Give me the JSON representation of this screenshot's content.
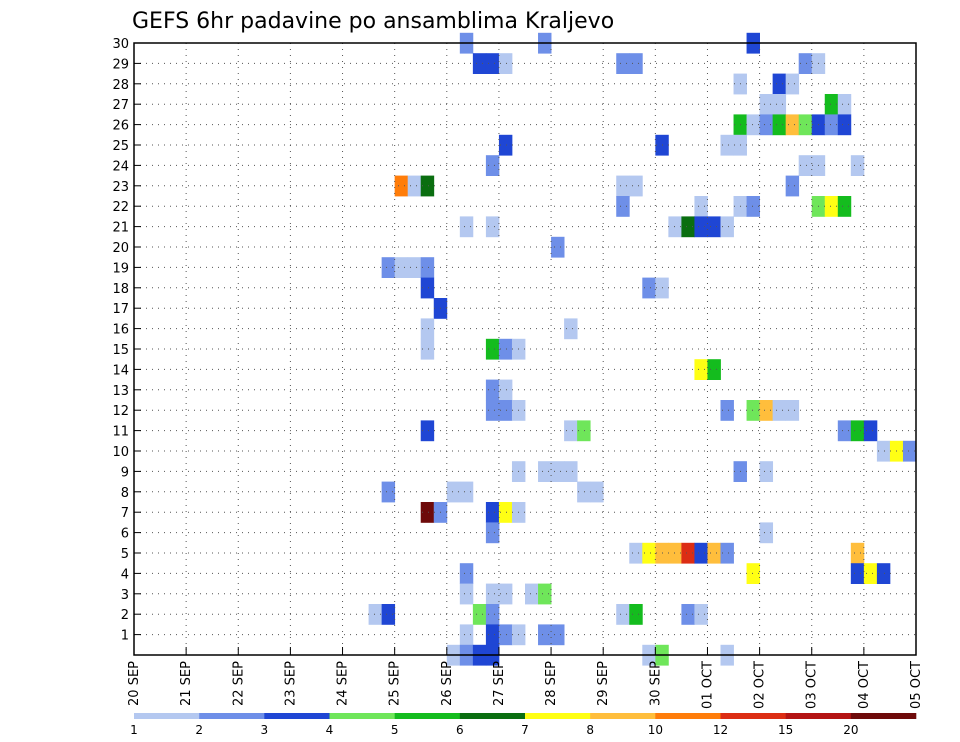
{
  "chart_data": {
    "type": "heatmap",
    "title": "GEFS 6hr padavine po ansamblima Kraljevo",
    "x_tick_labels": [
      "20 SEP",
      "21 SEP",
      "22 SEP",
      "23 SEP",
      "24 SEP",
      "25 SEP",
      "26 SEP",
      "27 SEP",
      "28 SEP",
      "29 SEP",
      "30 SEP",
      "01 OCT",
      "02 OCT",
      "03 OCT",
      "04 OCT",
      "05 OCT"
    ],
    "y_tick_labels": [
      "1",
      "2",
      "3",
      "4",
      "5",
      "6",
      "7",
      "8",
      "9",
      "10",
      "11",
      "12",
      "13",
      "14",
      "15",
      "16",
      "17",
      "18",
      "19",
      "20",
      "21",
      "22",
      "23",
      "24",
      "25",
      "26",
      "27",
      "28",
      "29",
      "30"
    ],
    "x_range_days": [
      0,
      15
    ],
    "y_range": [
      0,
      30
    ],
    "grid": "dotted",
    "colorbar": {
      "labels": [
        "1",
        "2",
        "3",
        "4",
        "5",
        "6",
        "7",
        "8",
        "10",
        "12",
        "15",
        "20"
      ],
      "colors": [
        "#b4c8f0",
        "#6e8fe8",
        "#1f46d4",
        "#6fe65a",
        "#14bc1e",
        "#0a6e10",
        "#ffff14",
        "#ffbe3c",
        "#ff7d0a",
        "#dc2d14",
        "#b41414",
        "#6e0a0a"
      ]
    },
    "cells": [
      {
        "d": 6.25,
        "m": 30,
        "c": 2
      },
      {
        "d": 7.75,
        "m": 30,
        "c": 2
      },
      {
        "d": 11.75,
        "m": 30,
        "c": 3
      },
      {
        "d": 6.5,
        "m": 29,
        "c": 3
      },
      {
        "d": 6.75,
        "m": 29,
        "c": 3
      },
      {
        "d": 7.0,
        "m": 29,
        "c": 1
      },
      {
        "d": 9.25,
        "m": 29,
        "c": 2
      },
      {
        "d": 9.5,
        "m": 29,
        "c": 2
      },
      {
        "d": 12.75,
        "m": 29,
        "c": 2
      },
      {
        "d": 13.0,
        "m": 29,
        "c": 1
      },
      {
        "d": 11.5,
        "m": 28,
        "c": 1
      },
      {
        "d": 12.25,
        "m": 28,
        "c": 3
      },
      {
        "d": 12.5,
        "m": 28,
        "c": 1
      },
      {
        "d": 12.0,
        "m": 27,
        "c": 1
      },
      {
        "d": 12.25,
        "m": 27,
        "c": 1
      },
      {
        "d": 13.25,
        "m": 27,
        "c": 5
      },
      {
        "d": 13.5,
        "m": 27,
        "c": 1
      },
      {
        "d": 11.5,
        "m": 26,
        "c": 5
      },
      {
        "d": 11.75,
        "m": 26,
        "c": 1
      },
      {
        "d": 12.0,
        "m": 26,
        "c": 2
      },
      {
        "d": 12.25,
        "m": 26,
        "c": 5
      },
      {
        "d": 12.5,
        "m": 26,
        "c": 8
      },
      {
        "d": 12.75,
        "m": 26,
        "c": 4
      },
      {
        "d": 13.0,
        "m": 26,
        "c": 3
      },
      {
        "d": 13.25,
        "m": 26,
        "c": 2
      },
      {
        "d": 13.5,
        "m": 26,
        "c": 3
      },
      {
        "d": 7.0,
        "m": 25,
        "c": 3
      },
      {
        "d": 10.0,
        "m": 25,
        "c": 3
      },
      {
        "d": 11.25,
        "m": 25,
        "c": 1
      },
      {
        "d": 11.5,
        "m": 25,
        "c": 1
      },
      {
        "d": 6.75,
        "m": 24,
        "c": 2
      },
      {
        "d": 12.75,
        "m": 24,
        "c": 1
      },
      {
        "d": 13.0,
        "m": 24,
        "c": 1
      },
      {
        "d": 13.75,
        "m": 24,
        "c": 1
      },
      {
        "d": 5.0,
        "m": 23,
        "c": 9
      },
      {
        "d": 5.25,
        "m": 23,
        "c": 1
      },
      {
        "d": 5.5,
        "m": 23,
        "c": 6
      },
      {
        "d": 9.25,
        "m": 23,
        "c": 1
      },
      {
        "d": 9.5,
        "m": 23,
        "c": 1
      },
      {
        "d": 12.5,
        "m": 23,
        "c": 2
      },
      {
        "d": 9.25,
        "m": 22,
        "c": 2
      },
      {
        "d": 10.75,
        "m": 22,
        "c": 1
      },
      {
        "d": 11.5,
        "m": 22,
        "c": 1
      },
      {
        "d": 11.75,
        "m": 22,
        "c": 2
      },
      {
        "d": 13.0,
        "m": 22,
        "c": 4
      },
      {
        "d": 13.25,
        "m": 22,
        "c": 7
      },
      {
        "d": 13.5,
        "m": 22,
        "c": 5
      },
      {
        "d": 6.25,
        "m": 21,
        "c": 1
      },
      {
        "d": 6.75,
        "m": 21,
        "c": 1
      },
      {
        "d": 10.25,
        "m": 21,
        "c": 1
      },
      {
        "d": 10.5,
        "m": 21,
        "c": 6
      },
      {
        "d": 10.75,
        "m": 21,
        "c": 3
      },
      {
        "d": 11.0,
        "m": 21,
        "c": 3
      },
      {
        "d": 11.25,
        "m": 21,
        "c": 1
      },
      {
        "d": 8.0,
        "m": 20,
        "c": 2
      },
      {
        "d": 4.75,
        "m": 19,
        "c": 2
      },
      {
        "d": 5.0,
        "m": 19,
        "c": 1
      },
      {
        "d": 5.25,
        "m": 19,
        "c": 1
      },
      {
        "d": 5.5,
        "m": 19,
        "c": 2
      },
      {
        "d": 5.5,
        "m": 18,
        "c": 3
      },
      {
        "d": 9.75,
        "m": 18,
        "c": 2
      },
      {
        "d": 10.0,
        "m": 18,
        "c": 1
      },
      {
        "d": 5.75,
        "m": 17,
        "c": 3
      },
      {
        "d": 5.5,
        "m": 16,
        "c": 1
      },
      {
        "d": 8.25,
        "m": 16,
        "c": 1
      },
      {
        "d": 5.5,
        "m": 15,
        "c": 1
      },
      {
        "d": 6.75,
        "m": 15,
        "c": 5
      },
      {
        "d": 7.0,
        "m": 15,
        "c": 2
      },
      {
        "d": 7.25,
        "m": 15,
        "c": 1
      },
      {
        "d": 10.75,
        "m": 14,
        "c": 7
      },
      {
        "d": 11.0,
        "m": 14,
        "c": 5
      },
      {
        "d": 6.75,
        "m": 13,
        "c": 2
      },
      {
        "d": 7.0,
        "m": 13,
        "c": 1
      },
      {
        "d": 6.75,
        "m": 12,
        "c": 2
      },
      {
        "d": 7.0,
        "m": 12,
        "c": 2
      },
      {
        "d": 7.25,
        "m": 12,
        "c": 1
      },
      {
        "d": 11.25,
        "m": 12,
        "c": 2
      },
      {
        "d": 11.75,
        "m": 12,
        "c": 4
      },
      {
        "d": 12.0,
        "m": 12,
        "c": 8
      },
      {
        "d": 12.25,
        "m": 12,
        "c": 1
      },
      {
        "d": 12.5,
        "m": 12,
        "c": 1
      },
      {
        "d": 5.5,
        "m": 11,
        "c": 3
      },
      {
        "d": 8.25,
        "m": 11,
        "c": 1
      },
      {
        "d": 8.5,
        "m": 11,
        "c": 4
      },
      {
        "d": 13.5,
        "m": 11,
        "c": 2
      },
      {
        "d": 13.75,
        "m": 11,
        "c": 5
      },
      {
        "d": 14.0,
        "m": 11,
        "c": 3
      },
      {
        "d": 14.25,
        "m": 10,
        "c": 1
      },
      {
        "d": 14.5,
        "m": 10,
        "c": 7
      },
      {
        "d": 14.75,
        "m": 10,
        "c": 2
      },
      {
        "d": 7.25,
        "m": 9,
        "c": 1
      },
      {
        "d": 7.75,
        "m": 9,
        "c": 1
      },
      {
        "d": 8.0,
        "m": 9,
        "c": 1
      },
      {
        "d": 8.25,
        "m": 9,
        "c": 1
      },
      {
        "d": 11.5,
        "m": 9,
        "c": 2
      },
      {
        "d": 12.0,
        "m": 9,
        "c": 1
      },
      {
        "d": 4.75,
        "m": 8,
        "c": 2
      },
      {
        "d": 6.0,
        "m": 8,
        "c": 1
      },
      {
        "d": 6.25,
        "m": 8,
        "c": 1
      },
      {
        "d": 8.5,
        "m": 8,
        "c": 1
      },
      {
        "d": 8.75,
        "m": 8,
        "c": 1
      },
      {
        "d": 5.5,
        "m": 7,
        "c": 12
      },
      {
        "d": 5.75,
        "m": 7,
        "c": 2
      },
      {
        "d": 6.75,
        "m": 7,
        "c": 3
      },
      {
        "d": 7.0,
        "m": 7,
        "c": 7
      },
      {
        "d": 7.25,
        "m": 7,
        "c": 1
      },
      {
        "d": 6.75,
        "m": 6,
        "c": 2
      },
      {
        "d": 12.0,
        "m": 6,
        "c": 1
      },
      {
        "d": 9.5,
        "m": 5,
        "c": 1
      },
      {
        "d": 9.75,
        "m": 5,
        "c": 7
      },
      {
        "d": 10.0,
        "m": 5,
        "c": 8
      },
      {
        "d": 10.25,
        "m": 5,
        "c": 8
      },
      {
        "d": 10.5,
        "m": 5,
        "c": 10
      },
      {
        "d": 10.75,
        "m": 5,
        "c": 3
      },
      {
        "d": 11.0,
        "m": 5,
        "c": 8
      },
      {
        "d": 11.25,
        "m": 5,
        "c": 2
      },
      {
        "d": 13.75,
        "m": 5,
        "c": 8
      },
      {
        "d": 6.25,
        "m": 4,
        "c": 2
      },
      {
        "d": 11.75,
        "m": 4,
        "c": 7
      },
      {
        "d": 13.75,
        "m": 4,
        "c": 3
      },
      {
        "d": 14.0,
        "m": 4,
        "c": 7
      },
      {
        "d": 14.25,
        "m": 4,
        "c": 3
      },
      {
        "d": 6.25,
        "m": 3,
        "c": 1
      },
      {
        "d": 6.75,
        "m": 3,
        "c": 1
      },
      {
        "d": 7.0,
        "m": 3,
        "c": 1
      },
      {
        "d": 7.5,
        "m": 3,
        "c": 1
      },
      {
        "d": 7.75,
        "m": 3,
        "c": 4
      },
      {
        "d": 4.5,
        "m": 2,
        "c": 1
      },
      {
        "d": 4.75,
        "m": 2,
        "c": 3
      },
      {
        "d": 6.5,
        "m": 2,
        "c": 4
      },
      {
        "d": 6.75,
        "m": 2,
        "c": 2
      },
      {
        "d": 9.25,
        "m": 2,
        "c": 1
      },
      {
        "d": 9.5,
        "m": 2,
        "c": 5
      },
      {
        "d": 10.5,
        "m": 2,
        "c": 2
      },
      {
        "d": 10.75,
        "m": 2,
        "c": 1
      },
      {
        "d": 6.25,
        "m": 1,
        "c": 1
      },
      {
        "d": 6.75,
        "m": 1,
        "c": 3
      },
      {
        "d": 7.0,
        "m": 1,
        "c": 2
      },
      {
        "d": 7.25,
        "m": 1,
        "c": 1
      },
      {
        "d": 7.75,
        "m": 1,
        "c": 2
      },
      {
        "d": 8.0,
        "m": 1,
        "c": 2
      },
      {
        "d": 6.0,
        "m": 0,
        "c": 1
      },
      {
        "d": 6.25,
        "m": 0,
        "c": 2
      },
      {
        "d": 6.5,
        "m": 0,
        "c": 3
      },
      {
        "d": 6.75,
        "m": 0,
        "c": 3
      },
      {
        "d": 9.75,
        "m": 0,
        "c": 1
      },
      {
        "d": 10.0,
        "m": 0,
        "c": 4
      },
      {
        "d": 11.25,
        "m": 0,
        "c": 1
      }
    ]
  }
}
